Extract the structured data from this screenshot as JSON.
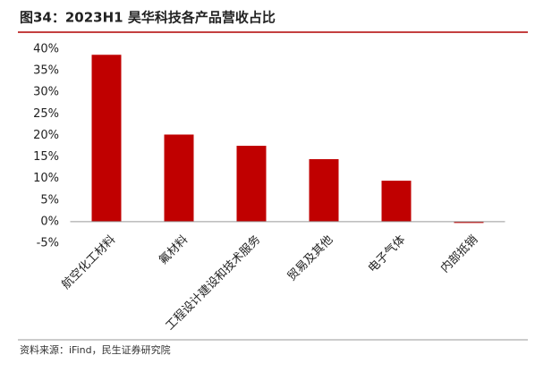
{
  "chart_data": {
    "type": "bar",
    "title": "图34：2023H1 昊华科技各产品营收占比",
    "categories": [
      "航空化工材料",
      "氟材料",
      "工程设计建设和技术服务",
      "贸易及其他",
      "电子气体",
      "内部抵销"
    ],
    "values": [
      38.7,
      20.2,
      17.6,
      14.5,
      9.5,
      -0.3
    ],
    "color": "#c00000",
    "ylim": [
      -5,
      40
    ],
    "yticks": [
      {
        "value": -5,
        "label": "-5%"
      },
      {
        "value": 0,
        "label": "0%"
      },
      {
        "value": 5,
        "label": "5%"
      },
      {
        "value": 10,
        "label": "10%"
      },
      {
        "value": 15,
        "label": "15%"
      },
      {
        "value": 20,
        "label": "20%"
      },
      {
        "value": 25,
        "label": "25%"
      },
      {
        "value": 30,
        "label": "30%"
      },
      {
        "value": 35,
        "label": "35%"
      },
      {
        "value": 40,
        "label": "40%"
      }
    ],
    "grid": false,
    "source": "资料来源：iFind，民生证券研究院"
  }
}
